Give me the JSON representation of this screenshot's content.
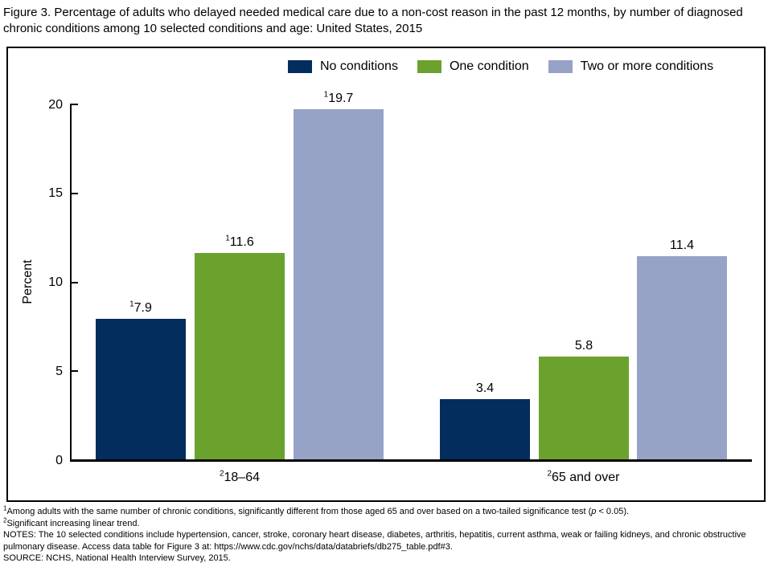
{
  "title": "Figure 3. Percentage of adults who delayed needed medical care due to a non-cost reason in the past 12 months, by number of diagnosed chronic conditions among 10 selected conditions and age: United States, 2015",
  "legend": [
    {
      "label": "No conditions",
      "color": "#032d5c"
    },
    {
      "label": "One condition",
      "color": "#6ba22e"
    },
    {
      "label": "Two or more conditions",
      "color": "#96a3c7"
    }
  ],
  "chart_data": {
    "type": "bar",
    "title": "Figure 3. Percentage of adults who delayed needed medical care due to a non-cost reason in the past 12 months, by number of diagnosed chronic conditions among 10 selected conditions and age: United States, 2015",
    "xlabel": "",
    "ylabel": "Percent",
    "ylim": [
      0,
      20
    ],
    "yticks": [
      0,
      5,
      10,
      15,
      20
    ],
    "grid": false,
    "legend_position": "top-right",
    "categories": [
      {
        "sup": "2",
        "label": "18–64"
      },
      {
        "sup": "2",
        "label": "65 and over"
      }
    ],
    "series": [
      {
        "name": "No conditions",
        "color": "#032d5c",
        "values": [
          7.9,
          3.4
        ],
        "value_labels": [
          "7.9",
          "3.4"
        ],
        "value_sups": [
          "1",
          ""
        ]
      },
      {
        "name": "One condition",
        "color": "#6ba22e",
        "values": [
          11.6,
          5.8
        ],
        "value_labels": [
          "11.6",
          "5.8"
        ],
        "value_sups": [
          "1",
          ""
        ]
      },
      {
        "name": "Two or more conditions",
        "color": "#96a3c7",
        "values": [
          19.7,
          11.4
        ],
        "value_labels": [
          "19.7",
          "11.4"
        ],
        "value_sups": [
          "1",
          ""
        ]
      }
    ]
  },
  "footnotes": {
    "fn1": {
      "sup": "1",
      "pre_p": "Among adults with the same number of chronic conditions, significantly different from those aged 65 and over based on a two-tailed significance test (",
      "p": "p",
      "post_p": " < 0.05)."
    },
    "fn2": {
      "sup": "2",
      "text": "Significant increasing linear trend."
    },
    "notes": "NOTES: The 10 selected conditions include hypertension, cancer, stroke, coronary heart disease, diabetes, arthritis, hepatitis, current asthma, weak or failing kidneys, and chronic obstructive pulmonary disease. Access data table for Figure 3 at: https://www.cdc.gov/nchs/data/databriefs/db275_table.pdf#3.",
    "source": "SOURCE: NCHS, National Health Interview Survey, 2015."
  }
}
